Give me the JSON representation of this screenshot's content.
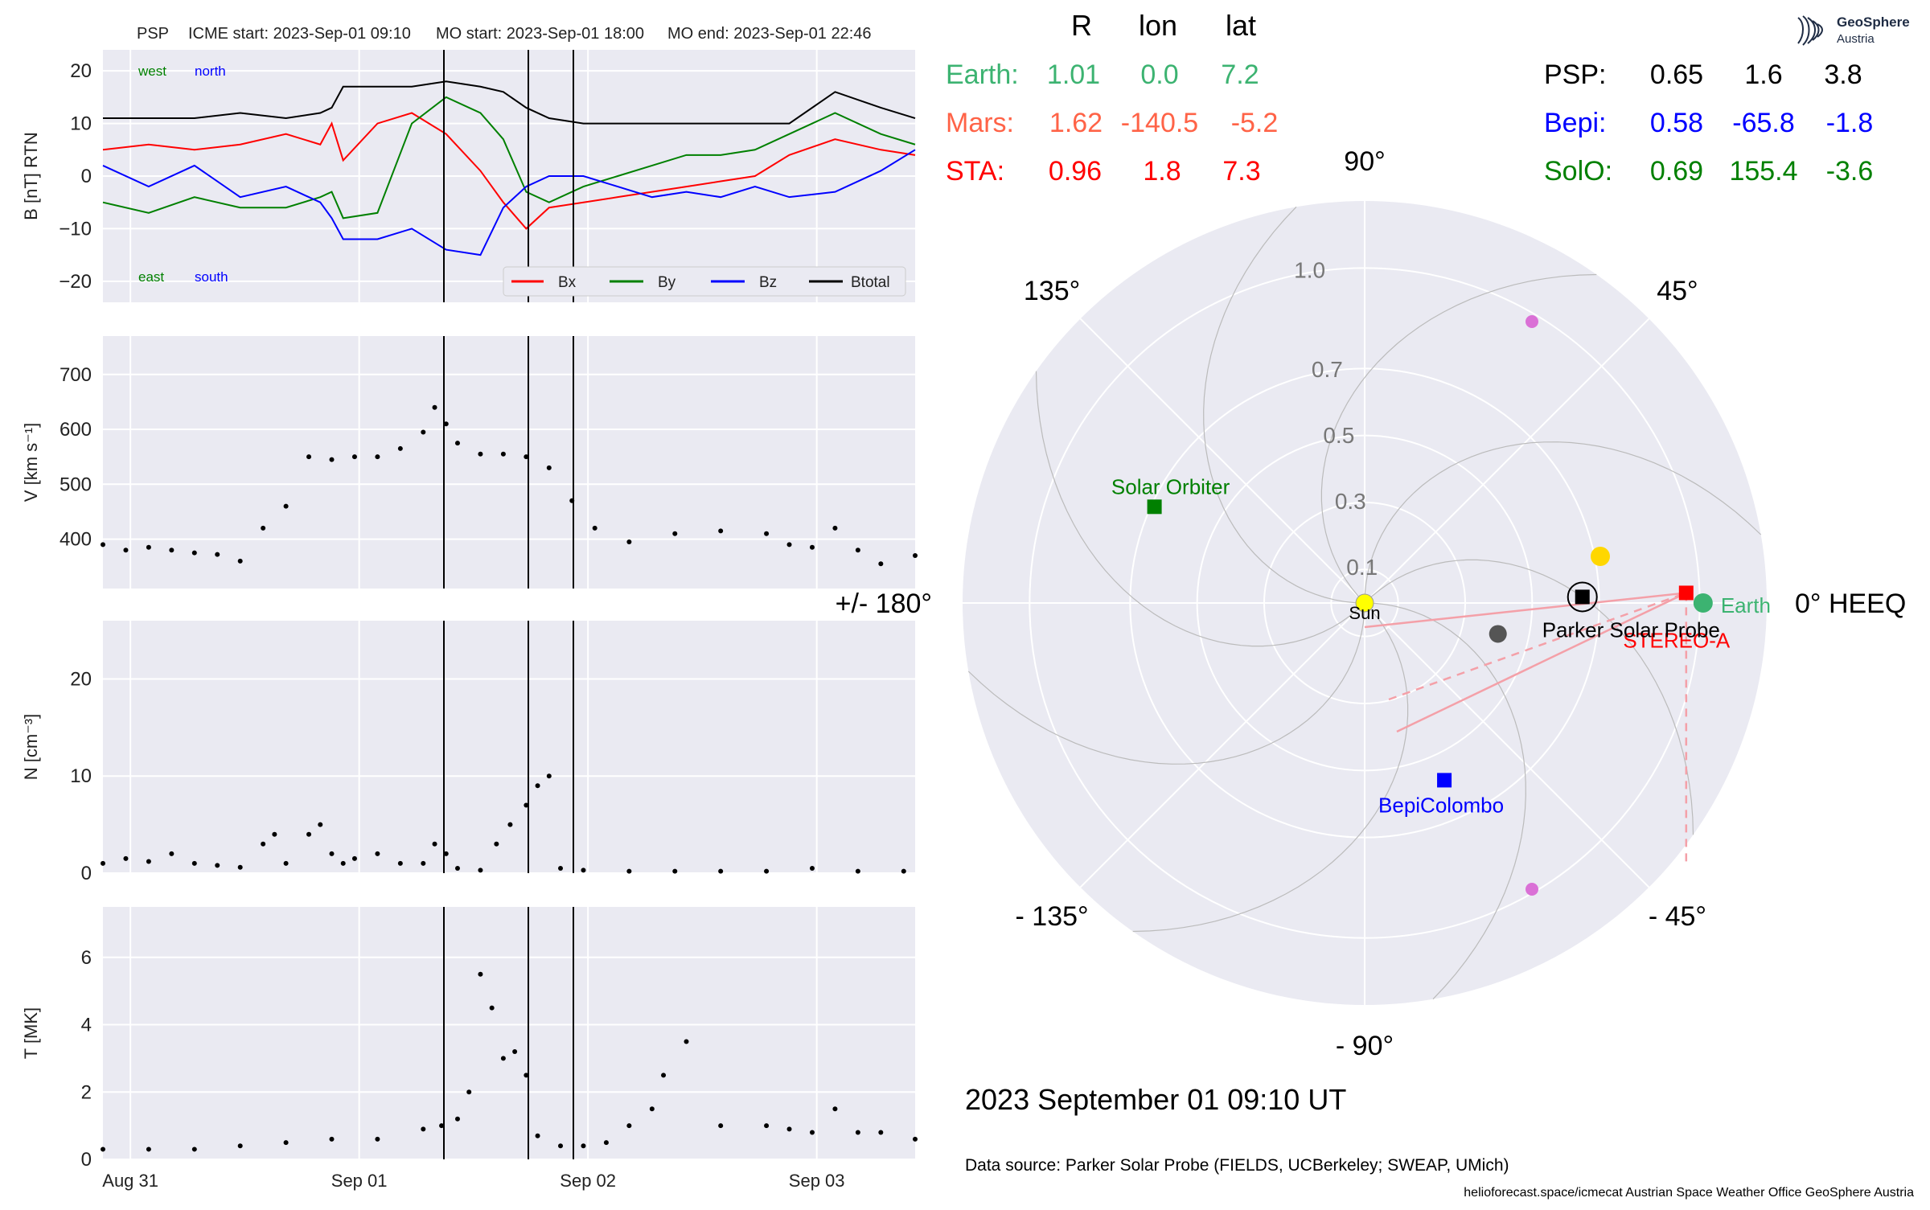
{
  "header": {
    "spacecraft": "PSP",
    "icme_start": "ICME start: 2023-Sep-01 09:10",
    "mo_start": "MO start: 2023-Sep-01 18:00",
    "mo_end": "MO end: 2023-Sep-01 22:46"
  },
  "logo": {
    "title": "GeoSphere",
    "subtitle": "Austria",
    "icon": "geosphere-logo-icon"
  },
  "positions_table": {
    "headers": [
      "R",
      "lon",
      "lat"
    ],
    "left_rows": [
      {
        "name": "Earth:",
        "r": "1.01",
        "lon": "0.0",
        "lat": "7.2",
        "color": "#3cb371"
      },
      {
        "name": "Mars:",
        "r": "1.62",
        "lon": "-140.5",
        "lat": "-5.2",
        "color": "#ff6347"
      },
      {
        "name": "STA:",
        "r": "0.96",
        "lon": "1.8",
        "lat": "7.3",
        "color": "#ff0000"
      }
    ],
    "right_rows": [
      {
        "name": "PSP:",
        "r": "0.65",
        "lon": "1.6",
        "lat": "3.8",
        "color": "#000000"
      },
      {
        "name": "Bepi:",
        "r": "0.58",
        "lon": "-65.8",
        "lat": "-1.8",
        "color": "#0000ff"
      },
      {
        "name": "SolO:",
        "r": "0.69",
        "lon": "155.4",
        "lat": "-3.6",
        "color": "#008000"
      }
    ]
  },
  "timestamp": "2023 September 01  09:10 UT",
  "data_source": "Data source: Parker Solar Probe (FIELDS, UCBerkeley; SWEAP, UMich)",
  "footer": "helioforecast.space/icmecat   Austrian Space Weather Office   GeoSphere Austria",
  "chart_data": [
    {
      "type": "line",
      "panel": "magnetic-field",
      "ylabel": "B [nT] RTN",
      "ylim": [
        -24,
        24
      ],
      "yticks": [
        -20,
        -10,
        0,
        10,
        20
      ],
      "ytick_labels": [
        "−20",
        "−10",
        "0",
        "10",
        "20"
      ],
      "annotations": {
        "top_left": "west",
        "top_right": "north",
        "bottom_left": "east",
        "bottom_right": "south"
      },
      "legend_position": "lower-right",
      "series": [
        {
          "name": "Bx",
          "color": "#ff0000",
          "x": [
            0,
            0.2,
            0.4,
            0.6,
            0.8,
            0.95,
            1.0,
            1.05,
            1.2,
            1.35,
            1.5,
            1.65,
            1.75,
            1.85,
            1.95,
            2.1,
            2.25,
            2.4,
            2.55,
            2.7,
            2.85,
            3.0,
            3.2,
            3.4,
            3.55
          ],
          "y": [
            5,
            6,
            5,
            6,
            8,
            6,
            10,
            3,
            10,
            12,
            8,
            1,
            -5,
            -10,
            -6,
            -5,
            -4,
            -3,
            -2,
            -1,
            0,
            4,
            7,
            5,
            4
          ]
        },
        {
          "name": "By",
          "color": "#008000",
          "x": [
            0,
            0.2,
            0.4,
            0.6,
            0.8,
            0.95,
            1.0,
            1.05,
            1.2,
            1.35,
            1.5,
            1.65,
            1.75,
            1.85,
            1.95,
            2.1,
            2.25,
            2.4,
            2.55,
            2.7,
            2.85,
            3.0,
            3.2,
            3.4,
            3.55
          ],
          "y": [
            -5,
            -7,
            -4,
            -6,
            -6,
            -4,
            -3,
            -8,
            -7,
            10,
            15,
            12,
            7,
            -3,
            -5,
            -2,
            0,
            2,
            4,
            4,
            5,
            8,
            12,
            8,
            6
          ]
        },
        {
          "name": "Bz",
          "color": "#0000ff",
          "x": [
            0,
            0.2,
            0.4,
            0.6,
            0.8,
            0.95,
            1.0,
            1.05,
            1.2,
            1.35,
            1.5,
            1.65,
            1.75,
            1.85,
            1.95,
            2.1,
            2.25,
            2.4,
            2.55,
            2.7,
            2.85,
            3.0,
            3.2,
            3.4,
            3.55
          ],
          "y": [
            2,
            -2,
            2,
            -4,
            -2,
            -5,
            -8,
            -12,
            -12,
            -10,
            -14,
            -15,
            -6,
            -2,
            0,
            0,
            -2,
            -4,
            -3,
            -4,
            -2,
            -4,
            -3,
            1,
            5
          ]
        },
        {
          "name": "Btotal",
          "color": "#000000",
          "x": [
            0,
            0.2,
            0.4,
            0.6,
            0.8,
            0.95,
            1.0,
            1.05,
            1.2,
            1.35,
            1.5,
            1.65,
            1.75,
            1.85,
            1.95,
            2.1,
            2.25,
            2.4,
            2.55,
            2.7,
            2.85,
            3.0,
            3.2,
            3.4,
            3.55
          ],
          "y": [
            11,
            11,
            11,
            12,
            11,
            12,
            13,
            17,
            17,
            17,
            18,
            17,
            16,
            13,
            11,
            10,
            10,
            10,
            10,
            10,
            10,
            10,
            16,
            13,
            11
          ]
        }
      ]
    },
    {
      "type": "scatter",
      "panel": "velocity",
      "ylabel": "V [km s⁻¹]",
      "ylim": [
        310,
        770
      ],
      "yticks": [
        400,
        500,
        600,
        700
      ],
      "x": [
        0,
        0.1,
        0.2,
        0.3,
        0.4,
        0.5,
        0.6,
        0.7,
        0.8,
        0.9,
        1.0,
        1.1,
        1.2,
        1.3,
        1.4,
        1.45,
        1.5,
        1.55,
        1.65,
        1.75,
        1.85,
        1.95,
        2.05,
        2.15,
        2.3,
        2.5,
        2.7,
        2.9,
        3.0,
        3.1,
        3.2,
        3.3,
        3.4,
        3.55
      ],
      "y": [
        390,
        380,
        385,
        380,
        375,
        372,
        360,
        420,
        460,
        550,
        545,
        550,
        550,
        565,
        595,
        640,
        610,
        575,
        555,
        555,
        550,
        530,
        470,
        420,
        395,
        410,
        415,
        410,
        390,
        385,
        420,
        380,
        355,
        370
      ]
    },
    {
      "type": "scatter",
      "panel": "density",
      "ylabel": "N [cm⁻³]",
      "ylim": [
        0,
        26
      ],
      "yticks": [
        0,
        10,
        20
      ],
      "x": [
        0,
        0.1,
        0.2,
        0.3,
        0.4,
        0.5,
        0.6,
        0.7,
        0.75,
        0.8,
        0.9,
        0.95,
        1.0,
        1.05,
        1.1,
        1.2,
        1.3,
        1.4,
        1.45,
        1.5,
        1.55,
        1.65,
        1.72,
        1.78,
        1.85,
        1.9,
        1.95,
        2.0,
        2.1,
        2.3,
        2.5,
        2.7,
        2.9,
        3.1,
        3.3,
        3.5
      ],
      "y": [
        1,
        1.5,
        1.2,
        2,
        1,
        0.8,
        0.6,
        3,
        4,
        1,
        4,
        5,
        2,
        1,
        1.5,
        2,
        1,
        1,
        3,
        2,
        0.5,
        0.3,
        3,
        5,
        7,
        9,
        10,
        0.5,
        0.3,
        0.2,
        0.2,
        0.2,
        0.2,
        0.5,
        0.2,
        0.2
      ]
    },
    {
      "type": "scatter",
      "panel": "temperature",
      "ylabel": "T [MK]",
      "ylim": [
        0,
        7.5
      ],
      "yticks": [
        0,
        2,
        4,
        6
      ],
      "xtick_labels": [
        "Aug 31",
        "Sep 01",
        "Sep 02",
        "Sep 03"
      ],
      "xticks": [
        0.12,
        1.12,
        2.12,
        3.12
      ],
      "x": [
        0,
        0.2,
        0.4,
        0.6,
        0.8,
        1.0,
        1.2,
        1.4,
        1.48,
        1.55,
        1.6,
        1.65,
        1.7,
        1.75,
        1.8,
        1.85,
        1.9,
        2.0,
        2.1,
        2.2,
        2.3,
        2.4,
        2.45,
        2.55,
        2.7,
        2.9,
        3.0,
        3.1,
        3.2,
        3.3,
        3.4,
        3.55
      ],
      "y": [
        0.3,
        0.3,
        0.3,
        0.4,
        0.5,
        0.6,
        0.6,
        0.9,
        1.0,
        1.2,
        2.0,
        5.5,
        4.5,
        3.0,
        3.2,
        2.5,
        0.7,
        0.4,
        0.4,
        0.5,
        1.0,
        1.5,
        2.5,
        3.5,
        1.0,
        1.0,
        0.9,
        0.8,
        1.5,
        0.8,
        0.8,
        0.6
      ]
    },
    {
      "type": "polar",
      "panel": "heliospheric-positions",
      "rlim": [
        0,
        1.2
      ],
      "r_tick_labels": [
        "0.1",
        "0.3",
        "0.5",
        "0.7",
        "1.0"
      ],
      "angle_labels": [
        "0° HEEQ",
        "45°",
        "90°",
        "135°",
        "+/- 180°",
        "- 135°",
        "- 90°",
        "- 45°"
      ],
      "objects": [
        {
          "name": "Sun",
          "r": 0.0,
          "lon": 0.0,
          "color": "#ffff00",
          "marker": "circle"
        },
        {
          "name": "Earth",
          "r": 1.01,
          "lon": 0.0,
          "color": "#3cb371",
          "marker": "circle"
        },
        {
          "name": "STEREO-A",
          "r": 0.96,
          "lon": 1.8,
          "color": "#ff0000",
          "marker": "square"
        },
        {
          "name": "Parker Solar Probe",
          "r": 0.65,
          "lon": 1.6,
          "color": "#000000",
          "marker": "square"
        },
        {
          "name": "BepiColombo",
          "r": 0.58,
          "lon": -65.8,
          "color": "#0000ff",
          "marker": "square"
        },
        {
          "name": "Solar Orbiter",
          "r": 0.69,
          "lon": 155.4,
          "color": "#008000",
          "marker": "square"
        }
      ]
    }
  ]
}
